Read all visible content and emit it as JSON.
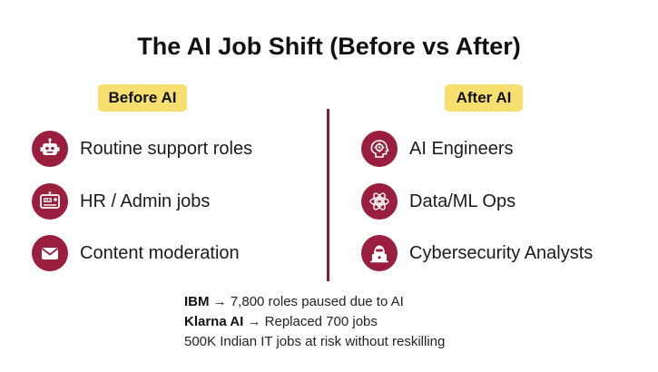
{
  "title": "The AI Job Shift (Before vs After)",
  "before": {
    "badge": "Before AI",
    "items": [
      {
        "label": "Routine support roles",
        "icon": "robot-icon"
      },
      {
        "label": "HR / Admin jobs",
        "icon": "hr-card-icon"
      },
      {
        "label": "Content moderation",
        "icon": "envelope-icon"
      }
    ]
  },
  "after": {
    "badge": "After AI",
    "items": [
      {
        "label": "AI Engineers",
        "icon": "brain-gear-icon"
      },
      {
        "label": "Data/ML Ops",
        "icon": "atom-data-icon"
      },
      {
        "label": "Cybersecurity Analysts",
        "icon": "hacker-laptop-icon"
      }
    ]
  },
  "notes": [
    {
      "bold": "IBM",
      "arrow": "→",
      "text": "7,800 roles paused due to AI"
    },
    {
      "bold": "Klarna AI",
      "arrow": "→",
      "text": "Replaced 700 jobs"
    },
    {
      "bold": "",
      "arrow": "",
      "text": "500K Indian IT jobs at risk without reskilling"
    }
  ],
  "colors": {
    "accent": "#9a1f3f",
    "badge": "#f7df6f",
    "divider": "#8b1d3a"
  }
}
